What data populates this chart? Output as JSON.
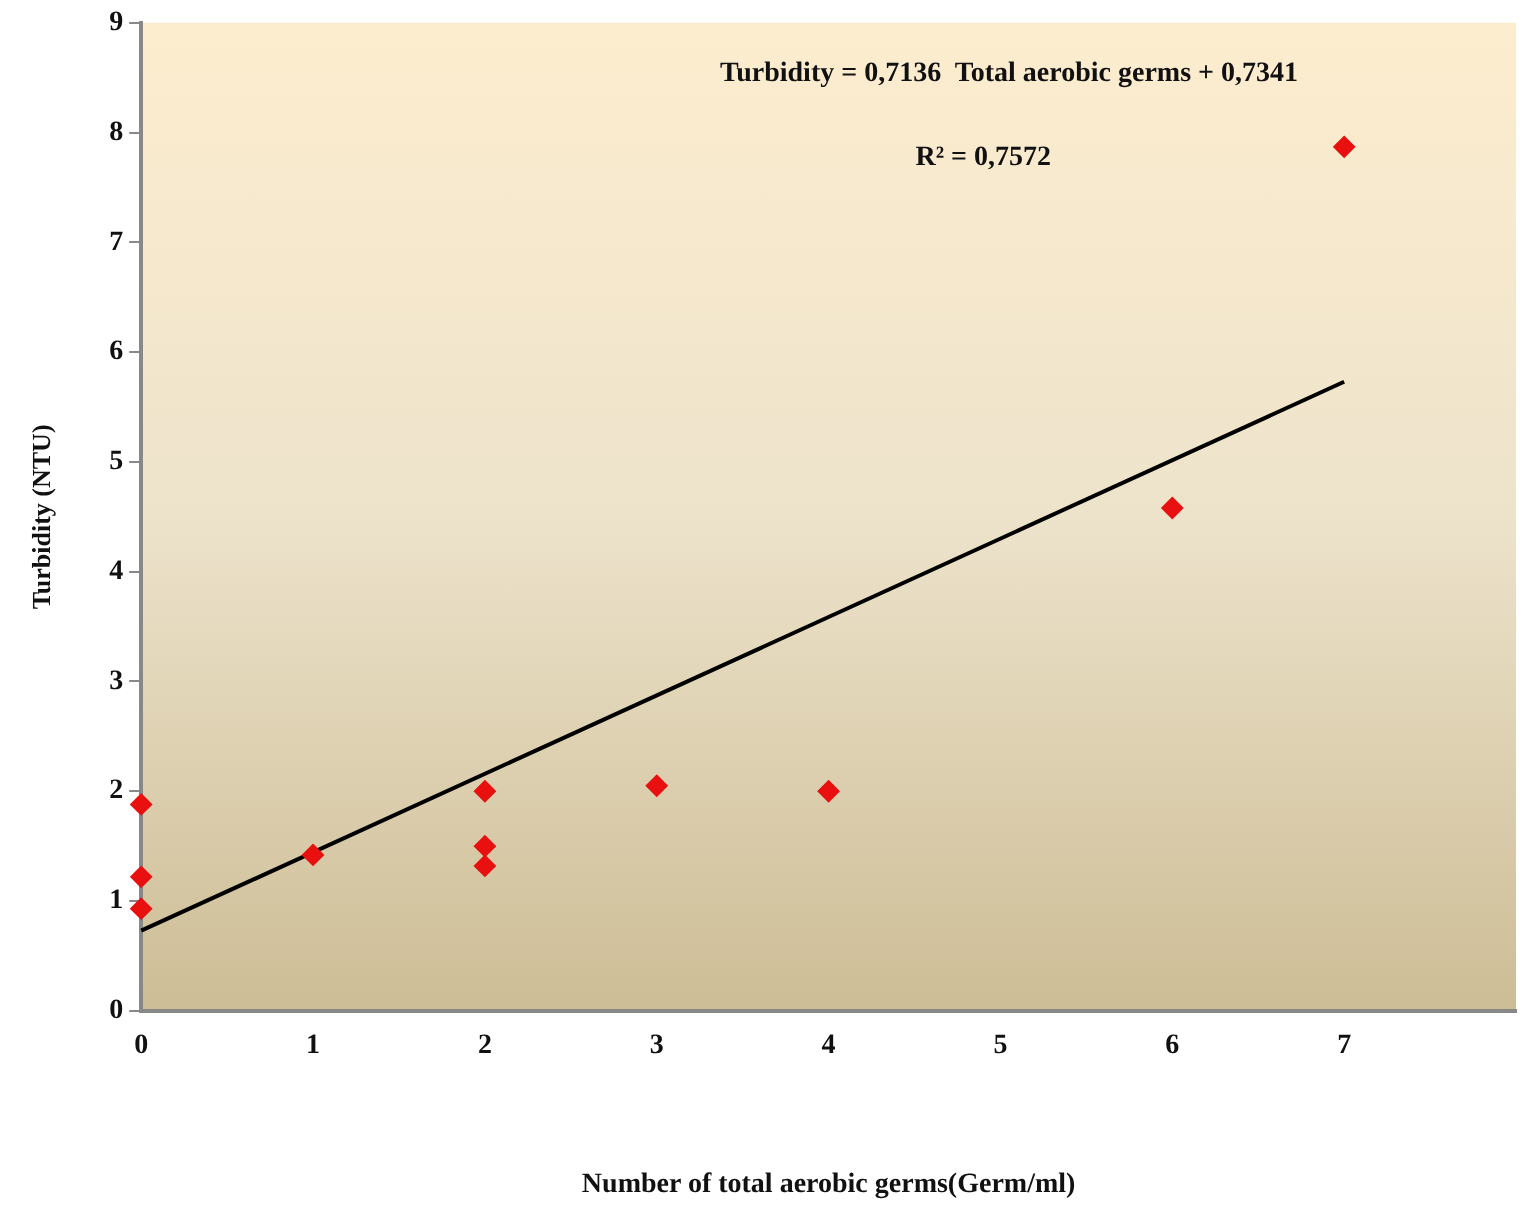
{
  "chart_data": {
    "type": "scatter",
    "xlabel": "Number of total aerobic germs(Germ/ml)",
    "ylabel": "Turbidity (NTU)",
    "annotations": [
      "Turbidity = 0,7136  Total aerobic germs + 0,7341",
      "R² = 0,7572"
    ],
    "xlim": [
      0,
      8
    ],
    "xticks": [
      0,
      1,
      2,
      3,
      4,
      5,
      6,
      7
    ],
    "ylim": [
      0,
      9
    ],
    "yticks": [
      0,
      1,
      2,
      3,
      4,
      5,
      6,
      7,
      8,
      9
    ],
    "grid": false,
    "legend": false,
    "marker": "diamond",
    "series": [
      {
        "color": "#e8110f",
        "x": [
          0,
          0,
          0,
          1,
          2,
          2,
          2,
          3,
          4,
          6,
          7
        ],
        "values": [
          1.88,
          1.22,
          0.93,
          1.42,
          2.0,
          1.5,
          1.32,
          2.05,
          2.0,
          4.58,
          7.87
        ]
      },
      {
        "type": "line",
        "color": "#000000",
        "line_style": "solid",
        "marker": "none",
        "x": [
          0,
          7
        ],
        "values": [
          0.73,
          5.73
        ]
      }
    ]
  }
}
